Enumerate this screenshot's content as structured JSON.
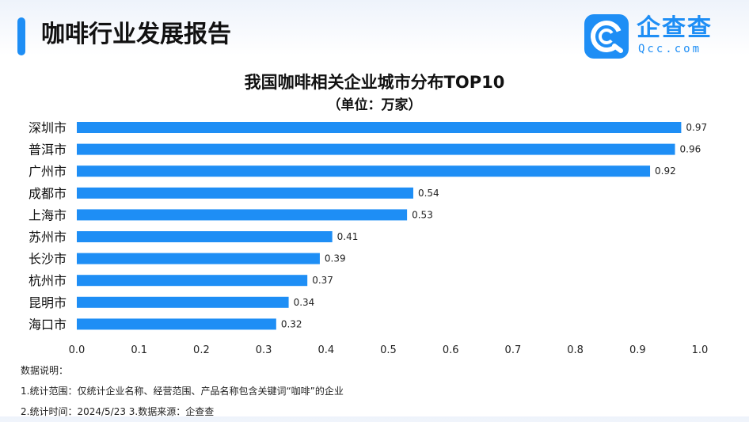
{
  "header": {
    "title": "咖啡行业发展报告",
    "logo_text": "企查查",
    "logo_sub": "Qcc.com",
    "accent_color": "#1e8ef5"
  },
  "chart_data": {
    "type": "bar",
    "orientation": "horizontal",
    "title": "我国咖啡相关企业城市分布TOP10",
    "subtitle": "（单位：万家）",
    "categories": [
      "深圳市",
      "普洱市",
      "广州市",
      "成都市",
      "上海市",
      "苏州市",
      "长沙市",
      "杭州市",
      "昆明市",
      "海口市"
    ],
    "values": [
      0.97,
      0.96,
      0.92,
      0.54,
      0.53,
      0.41,
      0.39,
      0.37,
      0.34,
      0.32
    ],
    "data_labels": [
      "0.97",
      "0.96",
      "0.92",
      "0.54",
      "0.53",
      "0.41",
      "0.39",
      "0.37",
      "0.34",
      "0.32"
    ],
    "xlim": [
      0,
      1.0
    ],
    "xticks": [
      "0.0",
      "0.1",
      "0.2",
      "0.3",
      "0.4",
      "0.5",
      "0.6",
      "0.7",
      "0.8",
      "0.9",
      "1.0"
    ],
    "grid": false,
    "bar_color": "#1e8ef5"
  },
  "notes": {
    "heading": "数据说明：",
    "line1": "1.统计范围：仅统计企业名称、经营范围、产品名称包含关键词“咖啡”的企业",
    "line2": "2.统计时间：2024/5/23    3.数据来源：企查查"
  }
}
